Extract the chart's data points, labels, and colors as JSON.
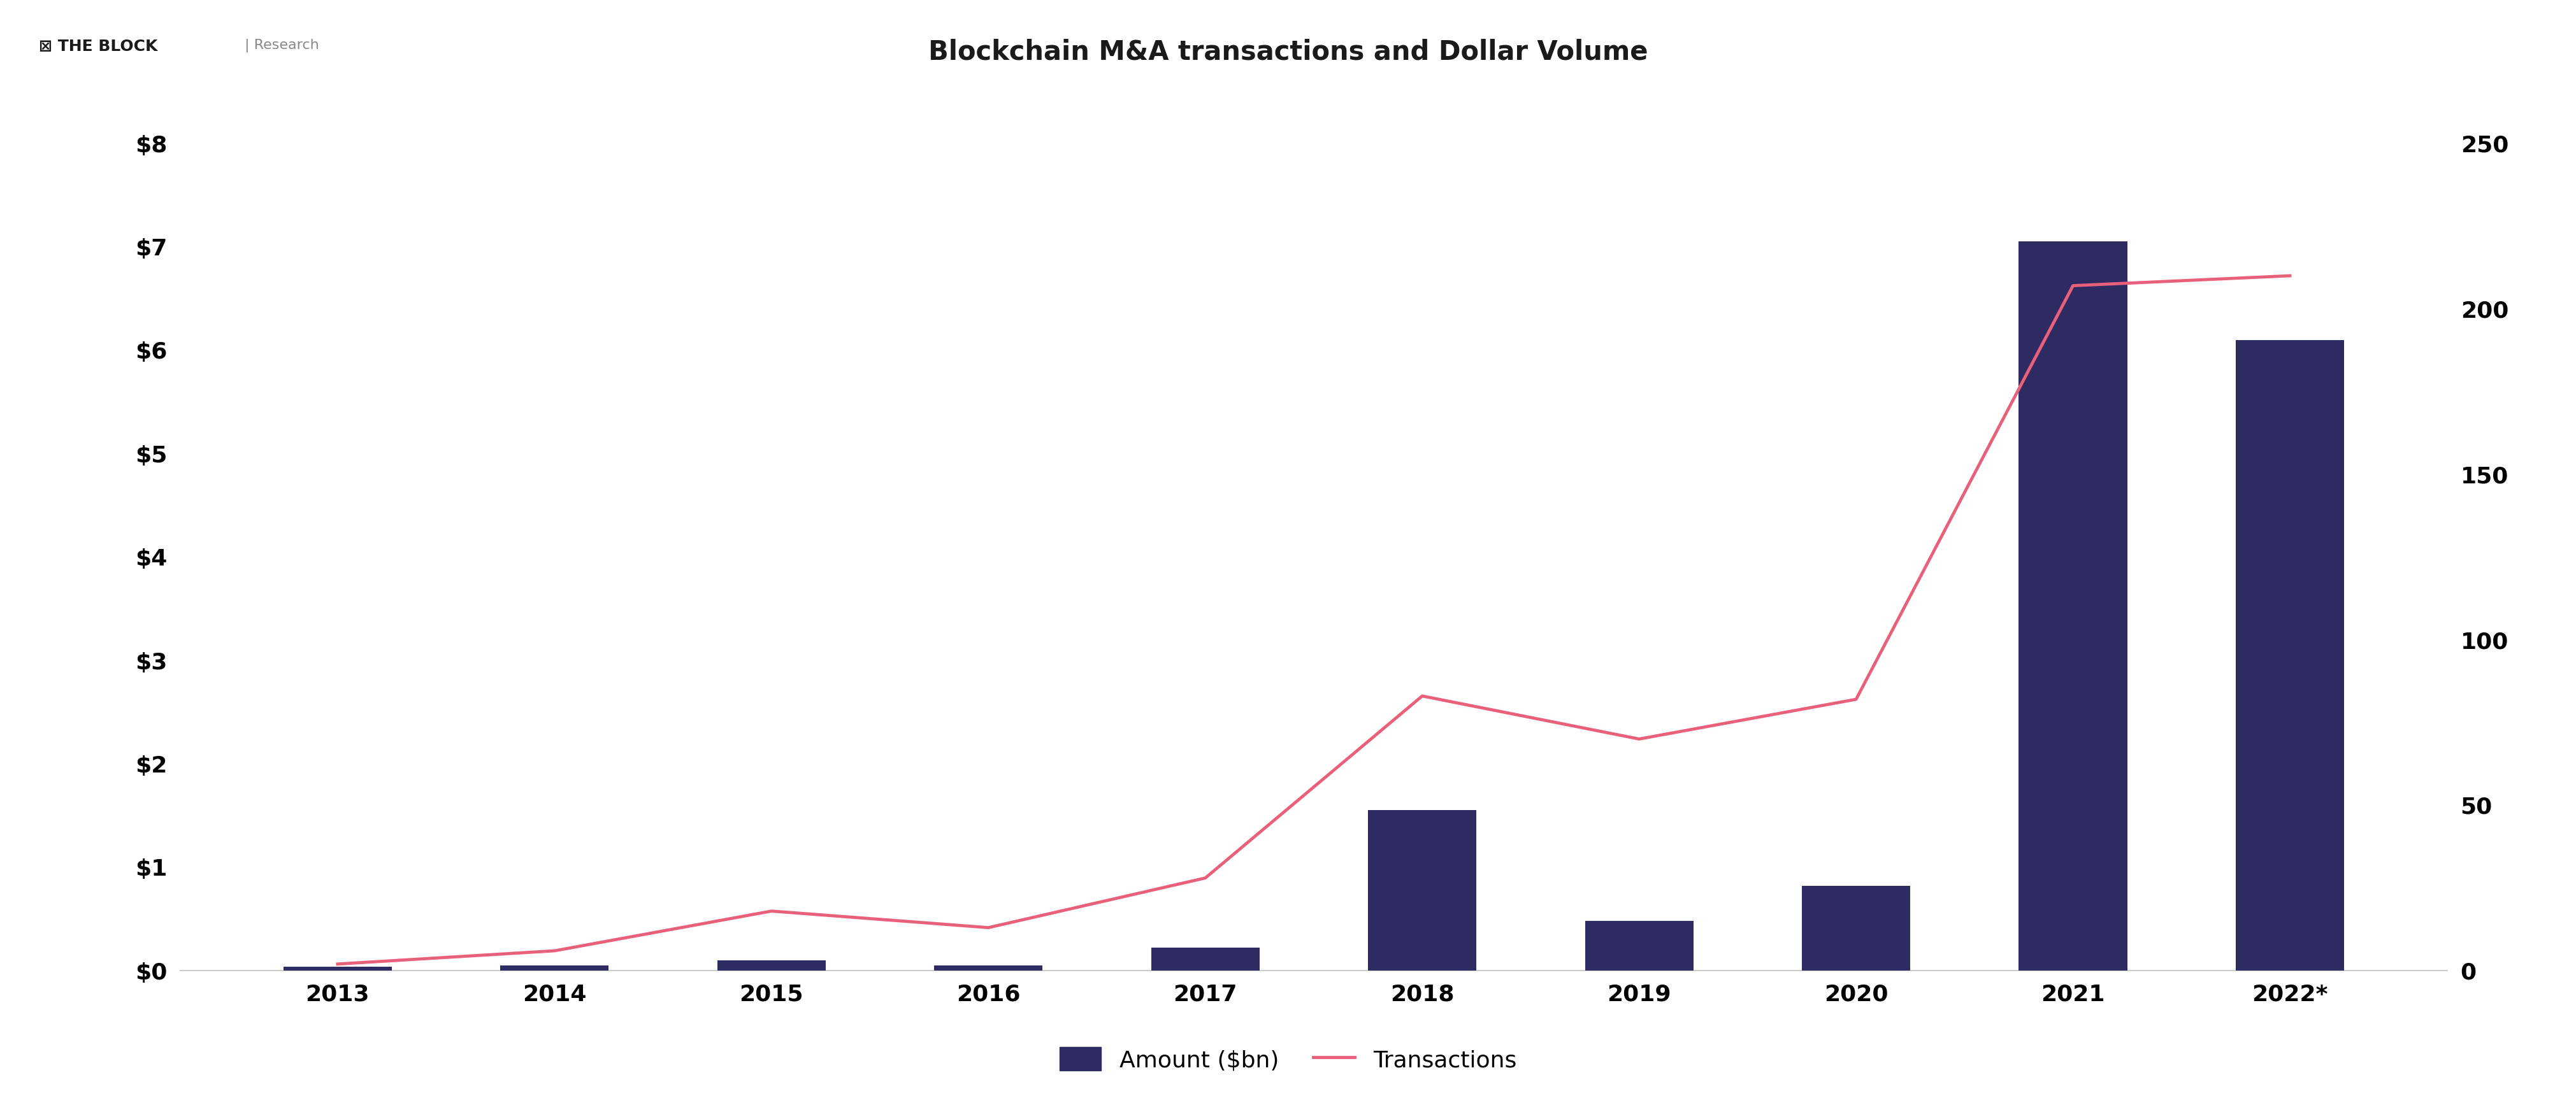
{
  "title": "Blockchain M&A transactions and Dollar Volume",
  "categories": [
    "2013",
    "2014",
    "2015",
    "2016",
    "2017",
    "2018",
    "2019",
    "2020",
    "2021",
    "2022*"
  ],
  "bar_values": [
    0.04,
    0.05,
    0.1,
    0.05,
    0.22,
    1.55,
    0.48,
    0.82,
    7.05,
    6.1
  ],
  "line_values": [
    2,
    6,
    18,
    13,
    28,
    83,
    70,
    82,
    207,
    210
  ],
  "bar_color": "#2e2b63",
  "line_color": "#e8607a",
  "left_ylim": [
    0,
    8
  ],
  "right_ylim": [
    0,
    250
  ],
  "left_yticks": [
    0,
    1,
    2,
    3,
    4,
    5,
    6,
    7,
    8
  ],
  "left_yticklabels": [
    "$0",
    "$1",
    "$2",
    "$3",
    "$4",
    "$5",
    "$6",
    "$7",
    "$8"
  ],
  "right_yticks": [
    0,
    50,
    100,
    150,
    200,
    250
  ],
  "right_yticklabels": [
    "0",
    "50",
    "100",
    "150",
    "200",
    "250"
  ],
  "legend_bar_label": "Amount ($bn)",
  "legend_line_label": "Transactions",
  "background_color": "#ffffff",
  "title_fontsize": 30,
  "tick_fontsize": 26,
  "legend_fontsize": 26,
  "logo_fontsize": 18,
  "bar_width": 0.5,
  "line_width": 3.5
}
